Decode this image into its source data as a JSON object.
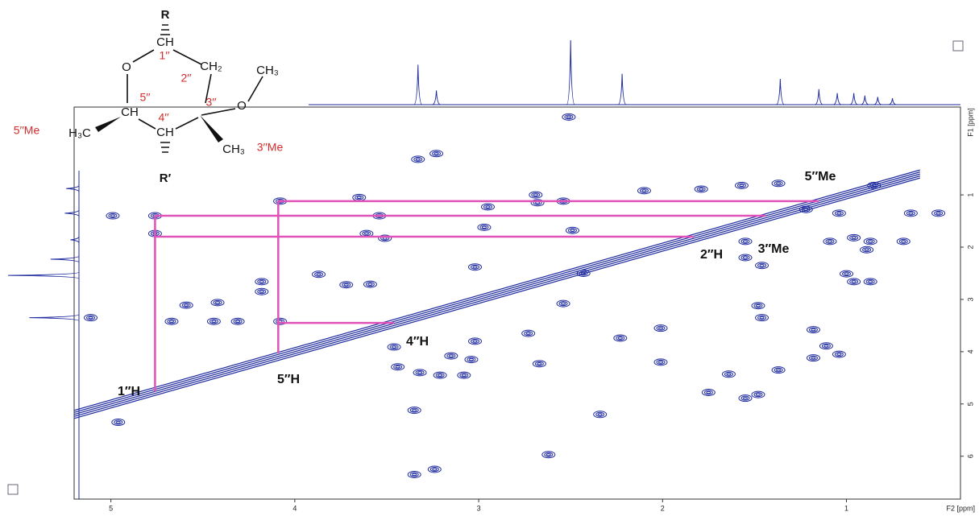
{
  "structure": {
    "r_top": "R",
    "ch_1": "CH",
    "num_1": "1′′",
    "ch2": "CH₂",
    "o_ring": "O",
    "ch3_ome": "CH₃",
    "num_2": "2′′",
    "num_5": "5′′",
    "num_3": "3′′",
    "o_methoxy": "O",
    "ch_5": "CH",
    "num_4": "4′′",
    "me_5": "5′′Me",
    "h3c": "H₃C",
    "ch_4": "CH",
    "ch3_3": "CH₃",
    "me_3": "3′′Me",
    "r_bottom": "R′"
  },
  "chart_data": {
    "type": "contour",
    "xlabel": "F2 [ppm]",
    "ylabel": "F1 [ppm]",
    "xlim": [
      5.2,
      0.38
    ],
    "ylim": [
      -0.68,
      6.82
    ],
    "xticks": [
      5,
      4,
      3,
      2,
      1
    ],
    "yticks": [
      1,
      2,
      3,
      4,
      5,
      6
    ],
    "color": "#1e2a9e",
    "line_color": "#e052b8",
    "diagonal": [
      5.2,
      0.6
    ],
    "peaks": {
      "x": [
        5.11,
        4.99,
        4.76,
        4.76,
        4.96,
        4.67,
        4.59,
        4.42,
        4.08,
        4.08,
        4.31,
        4.44,
        4.18,
        4.18,
        3.33,
        3.23,
        3.65,
        3.61,
        3.51,
        3.54,
        3.87,
        3.72,
        3.59,
        3.46,
        3.44,
        3.32,
        3.21,
        3.15,
        3.04,
        3.02,
        3.08,
        3.35,
        3.35,
        3.24,
        3.02,
        2.97,
        2.95,
        2.69,
        2.68,
        2.54,
        2.1,
        2.54,
        2.67,
        2.73,
        2.49,
        2.62,
        2.34,
        2.23,
        2.43,
        2.01,
        2.01,
        1.75,
        1.64,
        1.55,
        1.48,
        1.37,
        1.48,
        1.46,
        1.55,
        1.55,
        1.46,
        1.22,
        1.04,
        1.09,
        0.96,
        0.87,
        0.89,
        1.0,
        0.96,
        0.87,
        1.18,
        1.11,
        1.04,
        1.18,
        0.69,
        0.65,
        0.5,
        0.85,
        1.57,
        1.37,
        1.79,
        2.51
      ],
      "y": [
        3.35,
        1.4,
        1.4,
        1.74,
        5.35,
        3.42,
        3.11,
        3.06,
        1.12,
        3.42,
        3.42,
        3.42,
        2.85,
        2.66,
        0.32,
        0.21,
        1.05,
        1.74,
        1.83,
        1.4,
        2.52,
        2.72,
        2.71,
        3.91,
        4.29,
        4.4,
        4.45,
        4.08,
        4.15,
        3.8,
        4.45,
        5.12,
        6.35,
        6.25,
        2.38,
        1.62,
        1.23,
        1.0,
        1.15,
        1.12,
        0.92,
        3.08,
        4.23,
        3.65,
        1.68,
        5.97,
        5.2,
        3.74,
        2.5,
        3.55,
        4.2,
        4.78,
        4.43,
        4.89,
        4.82,
        4.35,
        3.12,
        3.35,
        1.89,
        2.2,
        2.35,
        1.28,
        1.35,
        1.89,
        1.82,
        1.89,
        2.05,
        2.51,
        2.66,
        2.66,
        3.58,
        3.89,
        4.05,
        4.12,
        1.89,
        1.35,
        1.35,
        0.82,
        0.82,
        0.78,
        0.89,
        -0.49
      ]
    },
    "correlation_lines": [
      {
        "x": [
          4.09,
          1.15
        ],
        "y": [
          1.12,
          1.12
        ]
      },
      {
        "x": [
          4.76,
          1.44
        ],
        "y": [
          1.4,
          1.4
        ]
      },
      {
        "x": [
          4.76,
          1.83
        ],
        "y": [
          1.8,
          1.8
        ]
      },
      {
        "x": [
          4.76,
          4.76
        ],
        "y": [
          1.4,
          4.76
        ]
      },
      {
        "x": [
          4.09,
          4.09
        ],
        "y": [
          1.12,
          4.03
        ]
      },
      {
        "x": [
          4.09,
          3.46
        ],
        "y": [
          3.45,
          3.45
        ]
      }
    ],
    "annotations": [
      "1′′H",
      "5′′H",
      "4′′H",
      "2′′H",
      "3′′Me",
      "5′′Me"
    ],
    "f2_projection": {
      "x": [
        3.33,
        3.23,
        2.5,
        2.22,
        1.36,
        1.15,
        1.05,
        0.96,
        0.9,
        0.83,
        0.75
      ],
      "intensity": [
        62,
        22,
        100,
        48,
        40,
        24,
        18,
        18,
        14,
        12,
        10
      ]
    },
    "f1_projection": {
      "y": [
        0.88,
        1.35,
        1.86,
        2.23,
        2.54,
        3.35
      ],
      "intensity": [
        18,
        20,
        12,
        40,
        100,
        70
      ]
    }
  }
}
